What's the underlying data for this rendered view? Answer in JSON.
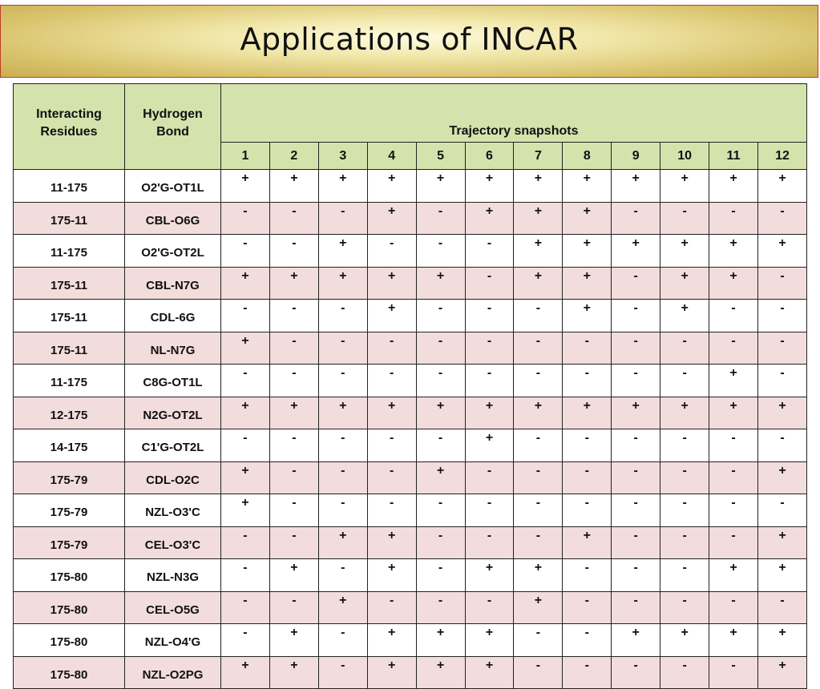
{
  "title": "Applications of INCAR",
  "headers": {
    "residues_line1": "Interacting",
    "residues_line2": "Residues",
    "bond_line1": "Hydrogen",
    "bond_line2": "Bond",
    "trajectory": "Trajectory snapshots",
    "snapshots": [
      "1",
      "2",
      "3",
      "4",
      "5",
      "6",
      "7",
      "8",
      "9",
      "10",
      "11",
      "12"
    ]
  },
  "rows": [
    {
      "residues": "11-175",
      "bond": "O2'G-OT1L",
      "marks": [
        "+",
        "+",
        "+",
        "+",
        "+",
        "+",
        "+",
        "+",
        "+",
        "+",
        "+",
        "+"
      ]
    },
    {
      "residues": "175-11",
      "bond": "CBL-O6G",
      "marks": [
        "-",
        "-",
        "-",
        "+",
        "-",
        "+",
        "+",
        "+",
        "-",
        "-",
        "-",
        "-"
      ]
    },
    {
      "residues": "11-175",
      "bond": "O2'G-OT2L",
      "marks": [
        "-",
        "-",
        "+",
        "-",
        "-",
        "-",
        "+",
        "+",
        "+",
        "+",
        "+",
        "+"
      ]
    },
    {
      "residues": "175-11",
      "bond": "CBL-N7G",
      "marks": [
        "+",
        "+",
        "+",
        "+",
        "+",
        "-",
        "+",
        "+",
        "-",
        "+",
        "+",
        "-"
      ]
    },
    {
      "residues": "175-11",
      "bond": "CDL-6G",
      "marks": [
        "-",
        "-",
        "-",
        "+",
        "-",
        "-",
        "-",
        "+",
        "-",
        "+",
        "-",
        "-"
      ]
    },
    {
      "residues": "175-11",
      "bond": "NL-N7G",
      "marks": [
        "+",
        "-",
        "-",
        "-",
        "-",
        "-",
        "-",
        "-",
        "-",
        "-",
        "-",
        "-"
      ]
    },
    {
      "residues": "11-175",
      "bond": "C8G-OT1L",
      "marks": [
        "-",
        "-",
        "-",
        "-",
        "-",
        "-",
        "-",
        "-",
        "-",
        "-",
        "+",
        "-"
      ]
    },
    {
      "residues": "12-175",
      "bond": "N2G-OT2L",
      "marks": [
        "+",
        "+",
        "+",
        "+",
        "+",
        "+",
        "+",
        "+",
        "+",
        "+",
        "+",
        "+"
      ]
    },
    {
      "residues": "14-175",
      "bond": "C1'G-OT2L",
      "marks": [
        "-",
        "-",
        "-",
        "-",
        "-",
        "+",
        "-",
        "-",
        "-",
        "-",
        "-",
        "-"
      ]
    },
    {
      "residues": "175-79",
      "bond": "CDL-O2C",
      "marks": [
        "+",
        "-",
        "-",
        "-",
        "+",
        "-",
        "-",
        "-",
        "-",
        "-",
        "-",
        "+"
      ]
    },
    {
      "residues": "175-79",
      "bond": "NZL-O3'C",
      "marks": [
        "+",
        "-",
        "-",
        "-",
        "-",
        "-",
        "-",
        "-",
        "-",
        "-",
        "-",
        "-"
      ]
    },
    {
      "residues": "175-79",
      "bond": "CEL-O3'C",
      "marks": [
        "-",
        "-",
        "+",
        "+",
        "-",
        "-",
        "-",
        "+",
        "-",
        "-",
        "-",
        "+"
      ]
    },
    {
      "residues": "175-80",
      "bond": "NZL-N3G",
      "marks": [
        "-",
        "+",
        "-",
        "+",
        "-",
        "+",
        "+",
        "-",
        "-",
        "-",
        "+",
        "+"
      ]
    },
    {
      "residues": "175-80",
      "bond": "CEL-O5G",
      "marks": [
        "-",
        "-",
        "+",
        "-",
        "-",
        "-",
        "+",
        "-",
        "-",
        "-",
        "-",
        "-"
      ]
    },
    {
      "residues": "175-80",
      "bond": "NZL-O4'G",
      "marks": [
        "-",
        "+",
        "-",
        "+",
        "+",
        "+",
        "-",
        "-",
        "+",
        "+",
        "+",
        "+"
      ]
    },
    {
      "residues": "175-80",
      "bond": "NZL-O2PG",
      "marks": [
        "+",
        "+",
        "-",
        "+",
        "+",
        "+",
        "-",
        "-",
        "-",
        "-",
        "-",
        "+"
      ]
    }
  ]
}
